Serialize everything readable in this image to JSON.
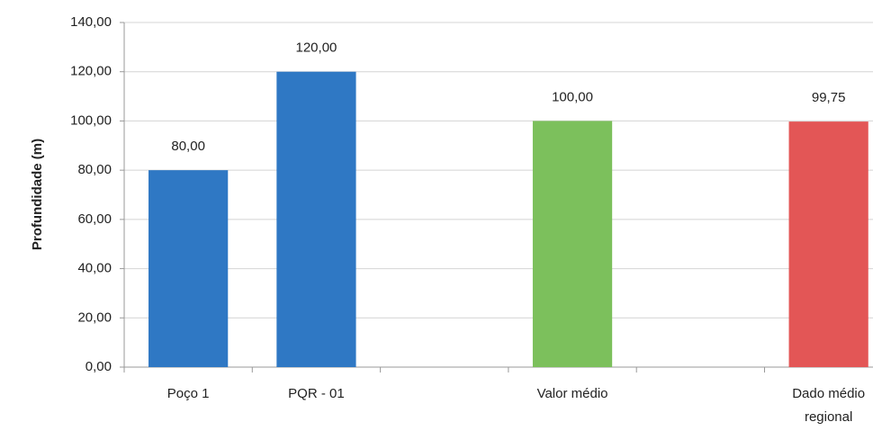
{
  "chart_data": {
    "type": "bar",
    "y_label": "Profundidade (m)",
    "categories": [
      "Poço 1",
      "PQR - 01",
      null,
      "Valor médio",
      null,
      [
        "Dado médio",
        "regional"
      ]
    ],
    "values": [
      80,
      120,
      null,
      100,
      null,
      99.75
    ],
    "value_labels": [
      "80,00",
      "120,00",
      null,
      "100,00",
      null,
      "99,75"
    ],
    "colors": [
      "#2f78c4",
      "#2f78c4",
      null,
      "#7cc05c",
      null,
      "#e35656"
    ],
    "ylim": [
      0,
      140
    ],
    "yticks": [
      {
        "value": 0,
        "label": "0,00"
      },
      {
        "value": 20,
        "label": "20,00"
      },
      {
        "value": 40,
        "label": "40,00"
      },
      {
        "value": 60,
        "label": "60,00"
      },
      {
        "value": 80,
        "label": "80,00"
      },
      {
        "value": 100,
        "label": "100,00"
      },
      {
        "value": 120,
        "label": "120,00"
      },
      {
        "value": 140,
        "label": "140,00"
      }
    ],
    "grid": true
  }
}
